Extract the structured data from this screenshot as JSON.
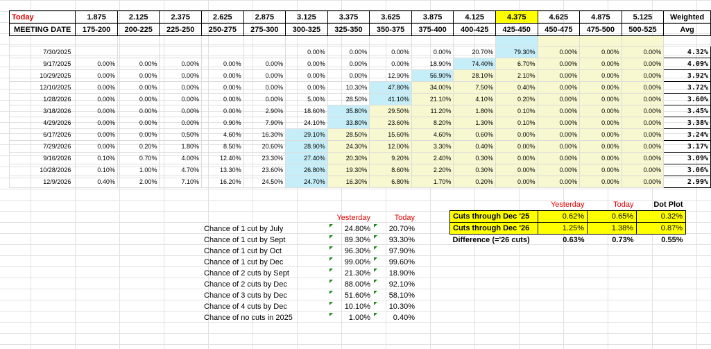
{
  "header": {
    "today_label": "Today",
    "meeting_label": "MEETING DATE",
    "weighted_label": "Weighted",
    "avg_label": "Avg",
    "rates": [
      "1.875",
      "2.125",
      "2.375",
      "2.625",
      "2.875",
      "3.125",
      "3.375",
      "3.625",
      "3.875",
      "4.125",
      "4.375",
      "4.625",
      "4.875",
      "5.125"
    ],
    "ranges": [
      "175-200",
      "200-225",
      "225-250",
      "250-275",
      "275-300",
      "300-325",
      "325-350",
      "350-375",
      "375-400",
      "400-425",
      "425-450",
      "450-475",
      "475-500",
      "500-525"
    ],
    "highlight_color": "#ffff00"
  },
  "rows": [
    {
      "date": "7/30/2025",
      "cells": [
        "",
        "",
        "",
        "",
        "",
        "0.00%",
        "0.00%",
        "0.00%",
        "0.00%",
        "20.70%",
        "79.30%",
        "0.00%",
        "0.00%",
        "0.00%"
      ],
      "avg": "4.32%"
    },
    {
      "date": "9/17/2025",
      "cells": [
        "0.00%",
        "0.00%",
        "0.00%",
        "0.00%",
        "0.00%",
        "0.00%",
        "0.00%",
        "0.00%",
        "18.90%",
        "74.40%",
        "6.70%",
        "0.00%",
        "0.00%",
        "0.00%"
      ],
      "avg": "4.09%"
    },
    {
      "date": "10/29/2025",
      "cells": [
        "0.00%",
        "0.00%",
        "0.00%",
        "0.00%",
        "0.00%",
        "0.00%",
        "0.00%",
        "12.90%",
        "56.90%",
        "28.10%",
        "2.10%",
        "0.00%",
        "0.00%",
        "0.00%"
      ],
      "avg": "3.92%"
    },
    {
      "date": "12/10/2025",
      "cells": [
        "0.00%",
        "0.00%",
        "0.00%",
        "0.00%",
        "0.00%",
        "0.00%",
        "10.30%",
        "47.80%",
        "34.00%",
        "7.50%",
        "0.40%",
        "0.00%",
        "0.00%",
        "0.00%"
      ],
      "avg": "3.72%"
    },
    {
      "date": "1/28/2026",
      "cells": [
        "0.00%",
        "0.00%",
        "0.00%",
        "0.00%",
        "0.00%",
        "5.00%",
        "28.50%",
        "41.10%",
        "21.10%",
        "4.10%",
        "0.20%",
        "0.00%",
        "0.00%",
        "0.00%"
      ],
      "avg": "3.60%"
    },
    {
      "date": "3/18/2026",
      "cells": [
        "0.00%",
        "0.00%",
        "0.00%",
        "0.00%",
        "2.90%",
        "18.60%",
        "35.80%",
        "29.50%",
        "11.20%",
        "1.80%",
        "0.10%",
        "0.00%",
        "0.00%",
        "0.00%"
      ],
      "avg": "3.45%"
    },
    {
      "date": "4/29/2026",
      "cells": [
        "0.00%",
        "0.00%",
        "0.00%",
        "0.90%",
        "7.90%",
        "24.10%",
        "33.80%",
        "23.60%",
        "8.20%",
        "1.30%",
        "0.10%",
        "0.00%",
        "0.00%",
        "0.00%"
      ],
      "avg": "3.38%"
    },
    {
      "date": "6/17/2026",
      "cells": [
        "0.00%",
        "0.00%",
        "0.50%",
        "4.60%",
        "16.30%",
        "29.10%",
        "28.50%",
        "15.60%",
        "4.60%",
        "0.60%",
        "0.00%",
        "0.00%",
        "0.00%",
        "0.00%"
      ],
      "avg": "3.24%"
    },
    {
      "date": "7/29/2026",
      "cells": [
        "0.00%",
        "0.20%",
        "1.80%",
        "8.50%",
        "20.60%",
        "28.90%",
        "24.30%",
        "12.00%",
        "3.30%",
        "0.40%",
        "0.00%",
        "0.00%",
        "0.00%",
        "0.00%"
      ],
      "avg": "3.17%"
    },
    {
      "date": "9/16/2026",
      "cells": [
        "0.10%",
        "0.70%",
        "4.00%",
        "12.40%",
        "23.30%",
        "27.40%",
        "20.30%",
        "9.20%",
        "2.40%",
        "0.30%",
        "0.00%",
        "0.00%",
        "0.00%",
        "0.00%"
      ],
      "avg": "3.09%"
    },
    {
      "date": "10/28/2026",
      "cells": [
        "0.10%",
        "1.00%",
        "4.70%",
        "13.30%",
        "23.60%",
        "26.80%",
        "19.30%",
        "8.60%",
        "2.20%",
        "0.30%",
        "0.00%",
        "0.00%",
        "0.00%",
        "0.00%"
      ],
      "avg": "3.06%"
    },
    {
      "date": "12/9/2026",
      "cells": [
        "0.40%",
        "2.00%",
        "7.10%",
        "16.20%",
        "24.50%",
        "24.70%",
        "16.30%",
        "6.80%",
        "1.70%",
        "0.20%",
        "0.00%",
        "0.00%",
        "0.00%",
        "0.00%"
      ],
      "avg": "2.99%"
    }
  ],
  "chances": {
    "yesterday_label": "Yesterday",
    "today_label": "Today",
    "items": [
      {
        "label": "Chance of 1 cut by July",
        "yesterday": "24.80%",
        "today": "20.70%"
      },
      {
        "label": "Chance of 1 cut by Sept",
        "yesterday": "89.30%",
        "today": "93.30%"
      },
      {
        "label": "Chance of 1 cut by Oct",
        "yesterday": "96.30%",
        "today": "97.90%"
      },
      {
        "label": "Chance of 1 cut by Dec",
        "yesterday": "99.00%",
        "today": "99.60%"
      },
      {
        "label": "Chance of 2 cuts by Sept",
        "yesterday": "21.30%",
        "today": "18.90%"
      },
      {
        "label": "Chance of 2 cuts by Dec",
        "yesterday": "88.00%",
        "today": "92.10%"
      },
      {
        "label": "Chance of 3 cuts by Dec",
        "yesterday": "51.60%",
        "today": "58.10%"
      },
      {
        "label": "Chance of 4 cuts by Dec",
        "yesterday": "10.10%",
        "today": "10.30%"
      },
      {
        "label": "Chance of no cuts in 2025",
        "yesterday": "1.00%",
        "today": "0.40%"
      }
    ]
  },
  "cuts": {
    "yesterday_label": "Yesterday",
    "today_label": "Today",
    "dot_plot_label": "Dot Plot",
    "rows": [
      {
        "label": "Cuts through Dec '25",
        "yesterday": "0.62%",
        "today": "0.65%",
        "dot": "0.32%"
      },
      {
        "label": "Cuts through Dec '26",
        "yesterday": "1.25%",
        "today": "1.38%",
        "dot": "0.87%"
      },
      {
        "label": "Difference (='26 cuts)",
        "yesterday": "0.63%",
        "today": "0.73%",
        "dot": "0.55%"
      }
    ]
  }
}
